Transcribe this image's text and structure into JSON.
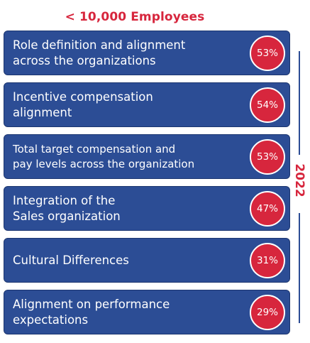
{
  "heading": "< 10,000 Employees",
  "year_label": "2022",
  "colors": {
    "heading": "#d7263d",
    "row_fill": "#2c4d95",
    "badge_fill": "#d7263d",
    "badge_border": "#ffffff"
  },
  "chart_data": {
    "type": "bar",
    "title": "< 10,000 Employees",
    "categories": [
      "Role definition and alignment across the organizations",
      "Incentive compensation alignment",
      "Total target compensation and pay levels across the organization",
      "Integration of the Sales organization",
      "Cultural Differences",
      "Alignment on performance expectations"
    ],
    "values": [
      53,
      54,
      53,
      47,
      31,
      29
    ],
    "value_labels": [
      "53%",
      "54%",
      "53%",
      "47%",
      "31%",
      "29%"
    ],
    "series": [
      {
        "name": "2022",
        "values": [
          53,
          54,
          53,
          47,
          31,
          29
        ]
      }
    ]
  },
  "rows": [
    {
      "line1": "Role definition and alignment",
      "line2": "across the organizations",
      "value": "53%"
    },
    {
      "line1": "Incentive compensation",
      "line2": "alignment",
      "value": "54%"
    },
    {
      "line1": "Total target compensation and",
      "line2": "pay levels across the organization",
      "value": "53%"
    },
    {
      "line1": "Integration of the",
      "line2": "Sales organization",
      "value": "47%"
    },
    {
      "line1": "Cultural Differences",
      "line2": "",
      "value": "31%"
    },
    {
      "line1": "Alignment on performance",
      "line2": "expectations",
      "value": "29%"
    }
  ]
}
